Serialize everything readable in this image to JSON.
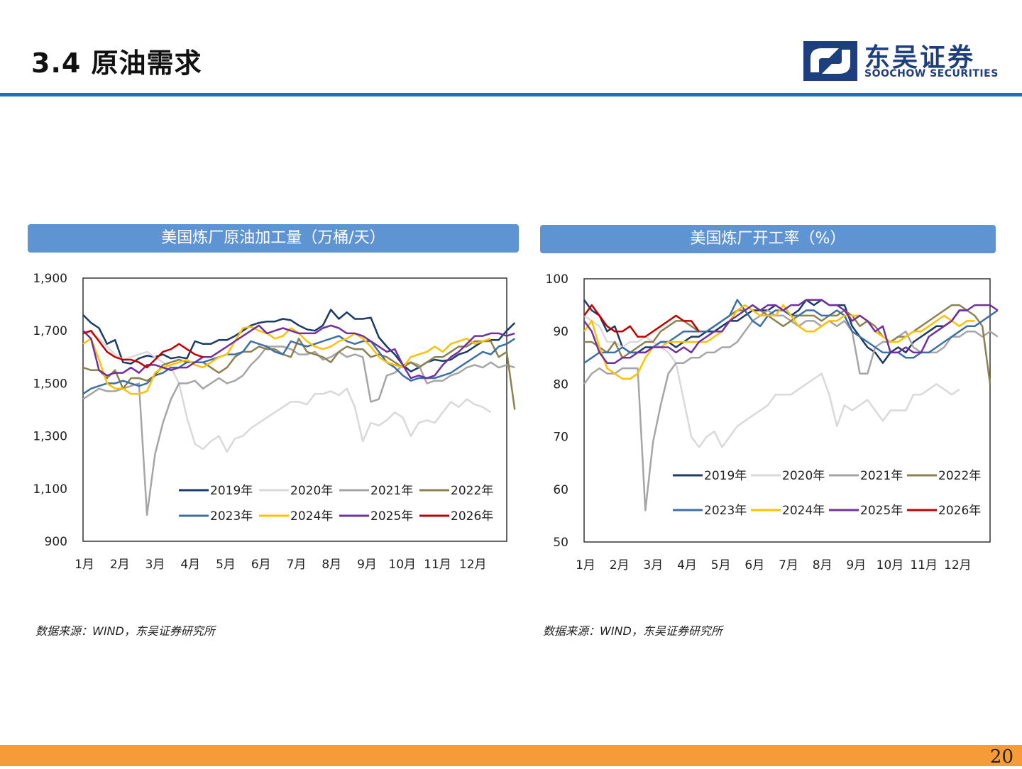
{
  "header": {
    "title": "3.4 原油需求"
  },
  "logo": {
    "name_cn": "东吴证券",
    "name_en": "SOOCHOW SECURITIES",
    "colors": {
      "primary": "#1e3f7e"
    }
  },
  "page_number": "20",
  "panels": [
    {
      "title": "美国炼厂原油加工量（万桶/天）",
      "source": "数据来源：WIND，东吴证券研究所"
    },
    {
      "title": "美国炼厂开工率（%）",
      "source": "数据来源：WIND，东吴证券研究所"
    }
  ],
  "chart_data": [
    {
      "type": "line",
      "title": "美国炼厂原油加工量（万桶/天）",
      "xlabel": "",
      "ylabel": "",
      "x_ticks": [
        "1月",
        "2月",
        "3月",
        "4月",
        "5月",
        "6月",
        "7月",
        "8月",
        "9月",
        "10月",
        "11月",
        "12月"
      ],
      "ylim": [
        900,
        1900
      ],
      "y_ticks": [
        "900",
        "1,100",
        "1,300",
        "1,500",
        "1,700",
        "1,900"
      ],
      "y_tick_values": [
        900,
        1100,
        1300,
        1500,
        1700,
        1900
      ],
      "legend": "bottom-right",
      "grid": false,
      "series": [
        {
          "name": "2019年",
          "color": "#1b3a66",
          "values": [
            1760,
            1730,
            1710,
            1650,
            1665,
            1580,
            1575,
            1595,
            1605,
            1600,
            1610,
            1595,
            1600,
            1595,
            1660,
            1650,
            1650,
            1665,
            1665,
            1680,
            1700,
            1720,
            1730,
            1735,
            1735,
            1745,
            1740,
            1720,
            1705,
            1700,
            1720,
            1780,
            1745,
            1770,
            1745,
            1745,
            1750,
            1675,
            1640,
            1610,
            1570,
            1545,
            1560,
            1580,
            1590,
            1585,
            1590,
            1610,
            1620,
            1640,
            1660,
            1665,
            1665,
            1700,
            1730
          ]
        },
        {
          "name": "2020年",
          "color": "#d9d9d9",
          "values": [
            1700,
            1690,
            1670,
            1640,
            1610,
            1590,
            1600,
            1610,
            1620,
            1600,
            1580,
            1560,
            1500,
            1370,
            1270,
            1250,
            1280,
            1300,
            1240,
            1290,
            1300,
            1330,
            1350,
            1370,
            1390,
            1410,
            1430,
            1430,
            1420,
            1460,
            1460,
            1470,
            1455,
            1480,
            1410,
            1280,
            1350,
            1340,
            1360,
            1390,
            1370,
            1300,
            1350,
            1360,
            1350,
            1390,
            1430,
            1410,
            1440,
            1420,
            1410,
            1390
          ]
        },
        {
          "name": "2021年",
          "color": "#a5a5a5",
          "values": [
            1440,
            1460,
            1480,
            1470,
            1470,
            1480,
            1490,
            1500,
            1000,
            1230,
            1350,
            1440,
            1500,
            1500,
            1510,
            1480,
            1500,
            1520,
            1500,
            1510,
            1530,
            1570,
            1600,
            1640,
            1640,
            1640,
            1630,
            1610,
            1610,
            1620,
            1590,
            1600,
            1620,
            1600,
            1610,
            1600,
            1430,
            1440,
            1530,
            1540,
            1570,
            1580,
            1570,
            1500,
            1510,
            1510,
            1530,
            1540,
            1560,
            1570,
            1560,
            1580,
            1560,
            1570,
            1560
          ]
        },
        {
          "name": "2022年",
          "color": "#8b8251",
          "values": [
            1560,
            1550,
            1550,
            1520,
            1550,
            1480,
            1520,
            1520,
            1510,
            1530,
            1570,
            1580,
            1590,
            1580,
            1580,
            1580,
            1560,
            1540,
            1560,
            1600,
            1620,
            1620,
            1640,
            1630,
            1630,
            1610,
            1600,
            1670,
            1620,
            1610,
            1600,
            1580,
            1620,
            1640,
            1630,
            1630,
            1600,
            1610,
            1600,
            1580,
            1560,
            1580,
            1560,
            1580,
            1600,
            1600,
            1620,
            1640,
            1640,
            1660,
            1660,
            1660,
            1600,
            1620,
            1400
          ]
        },
        {
          "name": "2023年",
          "color": "#3d6fa6",
          "values": [
            1460,
            1480,
            1490,
            1500,
            1500,
            1510,
            1500,
            1490,
            1500,
            1530,
            1540,
            1560,
            1560,
            1580,
            1580,
            1580,
            1590,
            1600,
            1610,
            1610,
            1620,
            1660,
            1650,
            1640,
            1620,
            1610,
            1660,
            1650,
            1640,
            1650,
            1660,
            1670,
            1680,
            1660,
            1650,
            1660,
            1660,
            1620,
            1580,
            1560,
            1530,
            1510,
            1520,
            1520,
            1520,
            1530,
            1540,
            1560,
            1580,
            1600,
            1620,
            1610,
            1640,
            1650,
            1670
          ]
        },
        {
          "name": "2024年",
          "color": "#ffc000",
          "values": [
            1650,
            1670,
            1590,
            1500,
            1480,
            1480,
            1460,
            1460,
            1470,
            1540,
            1560,
            1570,
            1580,
            1590,
            1570,
            1560,
            1580,
            1600,
            1610,
            1660,
            1710,
            1715,
            1700,
            1690,
            1670,
            1680,
            1710,
            1690,
            1660,
            1640,
            1630,
            1640,
            1660,
            1670,
            1690,
            1670,
            1640,
            1600,
            1580,
            1570,
            1560,
            1600,
            1610,
            1620,
            1640,
            1620,
            1650,
            1660,
            1670,
            1650,
            1660,
            1670
          ]
        },
        {
          "name": "2025年",
          "color": "#7030a0",
          "values": [
            1700,
            1670,
            1550,
            1530,
            1540,
            1540,
            1560,
            1540,
            1570,
            1570,
            1560,
            1550,
            1560,
            1560,
            1580,
            1600,
            1600,
            1620,
            1640,
            1660,
            1680,
            1700,
            1720,
            1690,
            1700,
            1710,
            1700,
            1690,
            1690,
            1690,
            1710,
            1720,
            1710,
            1690,
            1690,
            1680,
            1660,
            1640,
            1620,
            1630,
            1570,
            1520,
            1530,
            1520,
            1530,
            1570,
            1600,
            1620,
            1650,
            1680,
            1680,
            1690,
            1690,
            1680,
            1690
          ]
        },
        {
          "name": "2026年",
          "color": "#c00000",
          "values": [
            1690,
            1700,
            1660,
            1620,
            1600,
            1590,
            1590,
            1580,
            1560,
            1590,
            1620,
            1630,
            1650,
            1630,
            1610,
            1600
          ]
        }
      ]
    },
    {
      "type": "line",
      "title": "美国炼厂开工率（%）",
      "xlabel": "",
      "ylabel": "",
      "x_ticks": [
        "1月",
        "2月",
        "3月",
        "4月",
        "5月",
        "6月",
        "7月",
        "8月",
        "9月",
        "10月",
        "11月",
        "12月"
      ],
      "ylim": [
        50,
        100
      ],
      "y_ticks": [
        "50",
        "60",
        "70",
        "80",
        "90",
        "100"
      ],
      "y_tick_values": [
        50,
        60,
        70,
        80,
        90,
        100
      ],
      "legend": "bottom-right",
      "grid": false,
      "series": [
        {
          "name": "2019年",
          "color": "#1b3a66",
          "values": [
            96,
            94,
            93,
            90,
            91,
            87,
            86,
            86,
            87,
            87,
            88,
            88,
            87,
            88,
            89,
            89,
            90,
            90,
            91,
            92,
            92,
            93,
            94,
            94,
            94,
            95,
            94,
            93,
            94,
            96,
            95,
            96,
            95,
            95,
            95,
            91,
            89,
            87,
            86,
            84,
            86,
            87,
            86,
            88,
            89,
            90,
            91,
            91,
            92,
            94,
            94
          ]
        },
        {
          "name": "2020年",
          "color": "#d9d9d9",
          "values": [
            93,
            92,
            91,
            88,
            88,
            87,
            88,
            88,
            89,
            88,
            87,
            86,
            84,
            77,
            70,
            68,
            70,
            71,
            68,
            70,
            72,
            73,
            74,
            75,
            76,
            78,
            78,
            78,
            79,
            80,
            81,
            82,
            78,
            72,
            76,
            75,
            76,
            77,
            75,
            73,
            75,
            75,
            75,
            78,
            78,
            79,
            80,
            79,
            78,
            79
          ]
        },
        {
          "name": "2021年",
          "color": "#a5a5a5",
          "values": [
            80,
            82,
            83,
            82,
            82,
            83,
            83,
            83,
            56,
            69,
            76,
            82,
            84,
            84,
            85,
            85,
            86,
            86,
            87,
            87,
            88,
            90,
            92,
            93,
            94,
            93,
            93,
            92,
            91,
            92,
            92,
            91,
            92,
            91,
            92,
            90,
            82,
            82,
            87,
            88,
            88,
            89,
            90,
            87,
            86,
            86,
            86,
            87,
            89,
            89,
            90,
            90,
            89,
            90,
            89
          ]
        },
        {
          "name": "2022年",
          "color": "#8b8251",
          "values": [
            88,
            88,
            87,
            86,
            88,
            85,
            86,
            87,
            88,
            88,
            90,
            91,
            92,
            92,
            91,
            90,
            90,
            91,
            92,
            93,
            94,
            94,
            95,
            94,
            93,
            92,
            91,
            92,
            93,
            93,
            93,
            92,
            93,
            93,
            94,
            93,
            91,
            92,
            91,
            89,
            88,
            89,
            89,
            90,
            91,
            92,
            93,
            94,
            95,
            95,
            94,
            93,
            91,
            80
          ]
        },
        {
          "name": "2023年",
          "color": "#3d6fa6",
          "values": [
            84,
            85,
            86,
            86,
            86,
            87,
            86,
            86,
            86,
            87,
            88,
            88,
            89,
            90,
            90,
            90,
            90,
            91,
            92,
            93,
            96,
            94,
            92,
            91,
            93,
            94,
            94,
            93,
            93,
            94,
            94,
            93,
            93,
            94,
            93,
            90,
            89,
            88,
            87,
            86,
            86,
            86,
            85,
            85,
            86,
            86,
            87,
            88,
            89,
            90,
            91,
            91,
            92,
            93,
            94
          ]
        },
        {
          "name": "2024年",
          "color": "#ffc000",
          "values": [
            90,
            92,
            87,
            83,
            82,
            81,
            81,
            82,
            85,
            87,
            87,
            88,
            88,
            88,
            88,
            88,
            88,
            89,
            90,
            92,
            94,
            95,
            94,
            93,
            93,
            93,
            95,
            93,
            91,
            90,
            90,
            91,
            92,
            92,
            93,
            93,
            93,
            92,
            90,
            89,
            88,
            88,
            89,
            90,
            90,
            91,
            92,
            93,
            92,
            91,
            92,
            92
          ]
        },
        {
          "name": "2025年",
          "color": "#7030a0",
          "values": [
            92,
            90,
            86,
            84,
            84,
            85,
            85,
            86,
            86,
            87,
            87,
            87,
            86,
            87,
            86,
            88,
            89,
            90,
            90,
            92,
            93,
            94,
            95,
            94,
            95,
            95,
            94,
            95,
            95,
            96,
            96,
            96,
            95,
            95,
            94,
            92,
            93,
            92,
            90,
            91,
            86,
            86,
            87,
            86,
            86,
            89,
            90,
            91,
            92,
            94,
            94,
            95,
            95,
            95,
            94
          ]
        },
        {
          "name": "2026年",
          "color": "#c00000",
          "values": [
            93,
            95,
            93,
            91,
            90,
            90,
            91,
            89,
            89,
            90,
            91,
            92,
            93,
            92,
            92,
            90
          ]
        }
      ]
    }
  ]
}
